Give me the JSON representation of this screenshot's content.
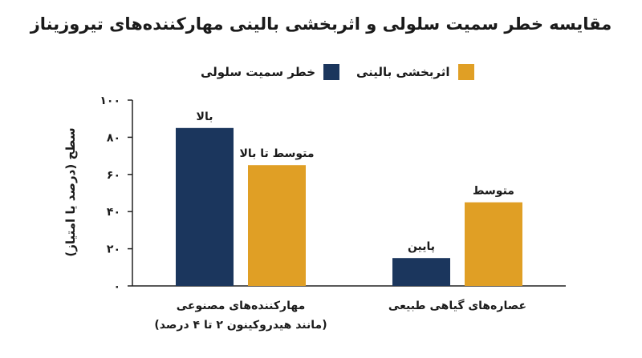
{
  "title": "مقایسه خطر سمیت سلولی و اثربخشی بالینی مهارکننده‌های تیروزیناز",
  "legend": [
    {
      "label": "خطر سمیت سلولی",
      "color": "#1b365d"
    },
    {
      "label": "اثربخشی بالینی",
      "color": "#e09f25"
    }
  ],
  "chart_data": {
    "type": "bar",
    "title": "مقایسه خطر سمیت سلولی و اثربخشی بالینی مهارکننده‌های تیروزیناز",
    "xlabel": "",
    "ylabel": "سطح (درصد یا امتیاز)",
    "ylim": [
      0,
      100
    ],
    "yticks": [
      "۰",
      "۲۰",
      "۴۰",
      "۶۰",
      "۸۰",
      "۱۰۰"
    ],
    "categories": [
      {
        "line1": "مهارکننده‌های مصنوعی",
        "line2": "(مانند هیدروکینون ۲ تا ۴ درصد)"
      },
      {
        "line1": "عصاره‌های گیاهی طبیعی",
        "line2": ""
      }
    ],
    "series": [
      {
        "name": "خطر سمیت سلولی",
        "color": "#1b365d",
        "values": [
          85,
          15
        ],
        "labels": [
          "بالا",
          "پایین"
        ]
      },
      {
        "name": "اثربخشی بالینی",
        "color": "#e09f25",
        "values": [
          65,
          45
        ],
        "labels": [
          "متوسط تا بالا",
          "متوسط"
        ]
      }
    ],
    "grid": false,
    "legend_position": "top"
  }
}
